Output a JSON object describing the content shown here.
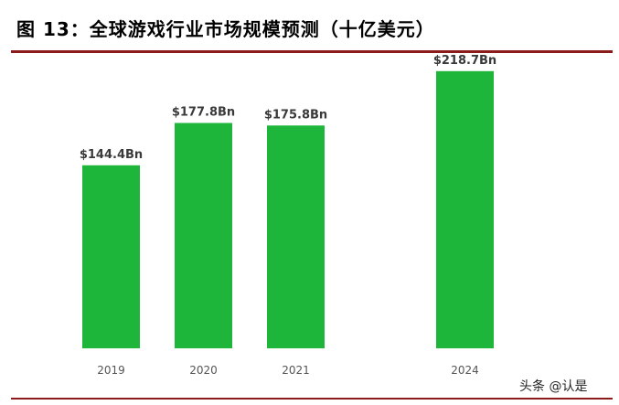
{
  "title": "图 13：全球游戏行业市场规模预测（十亿美元）",
  "watermark": "头条 @认是",
  "colors": {
    "bar": "#1db53a",
    "accent_rule": "#8b1a1a"
  },
  "chart_data": {
    "type": "bar",
    "title": "",
    "xlabel": "",
    "ylabel": "",
    "categories": [
      "2019",
      "2020",
      "2021",
      "2024"
    ],
    "values": [
      144.4,
      177.8,
      175.8,
      218.7
    ],
    "data_labels": [
      "$144.4Bn",
      "$177.8Bn",
      "$175.8Bn",
      "$218.7Bn"
    ],
    "ylim": [
      0,
      220
    ],
    "grid": false,
    "legend": "none"
  }
}
